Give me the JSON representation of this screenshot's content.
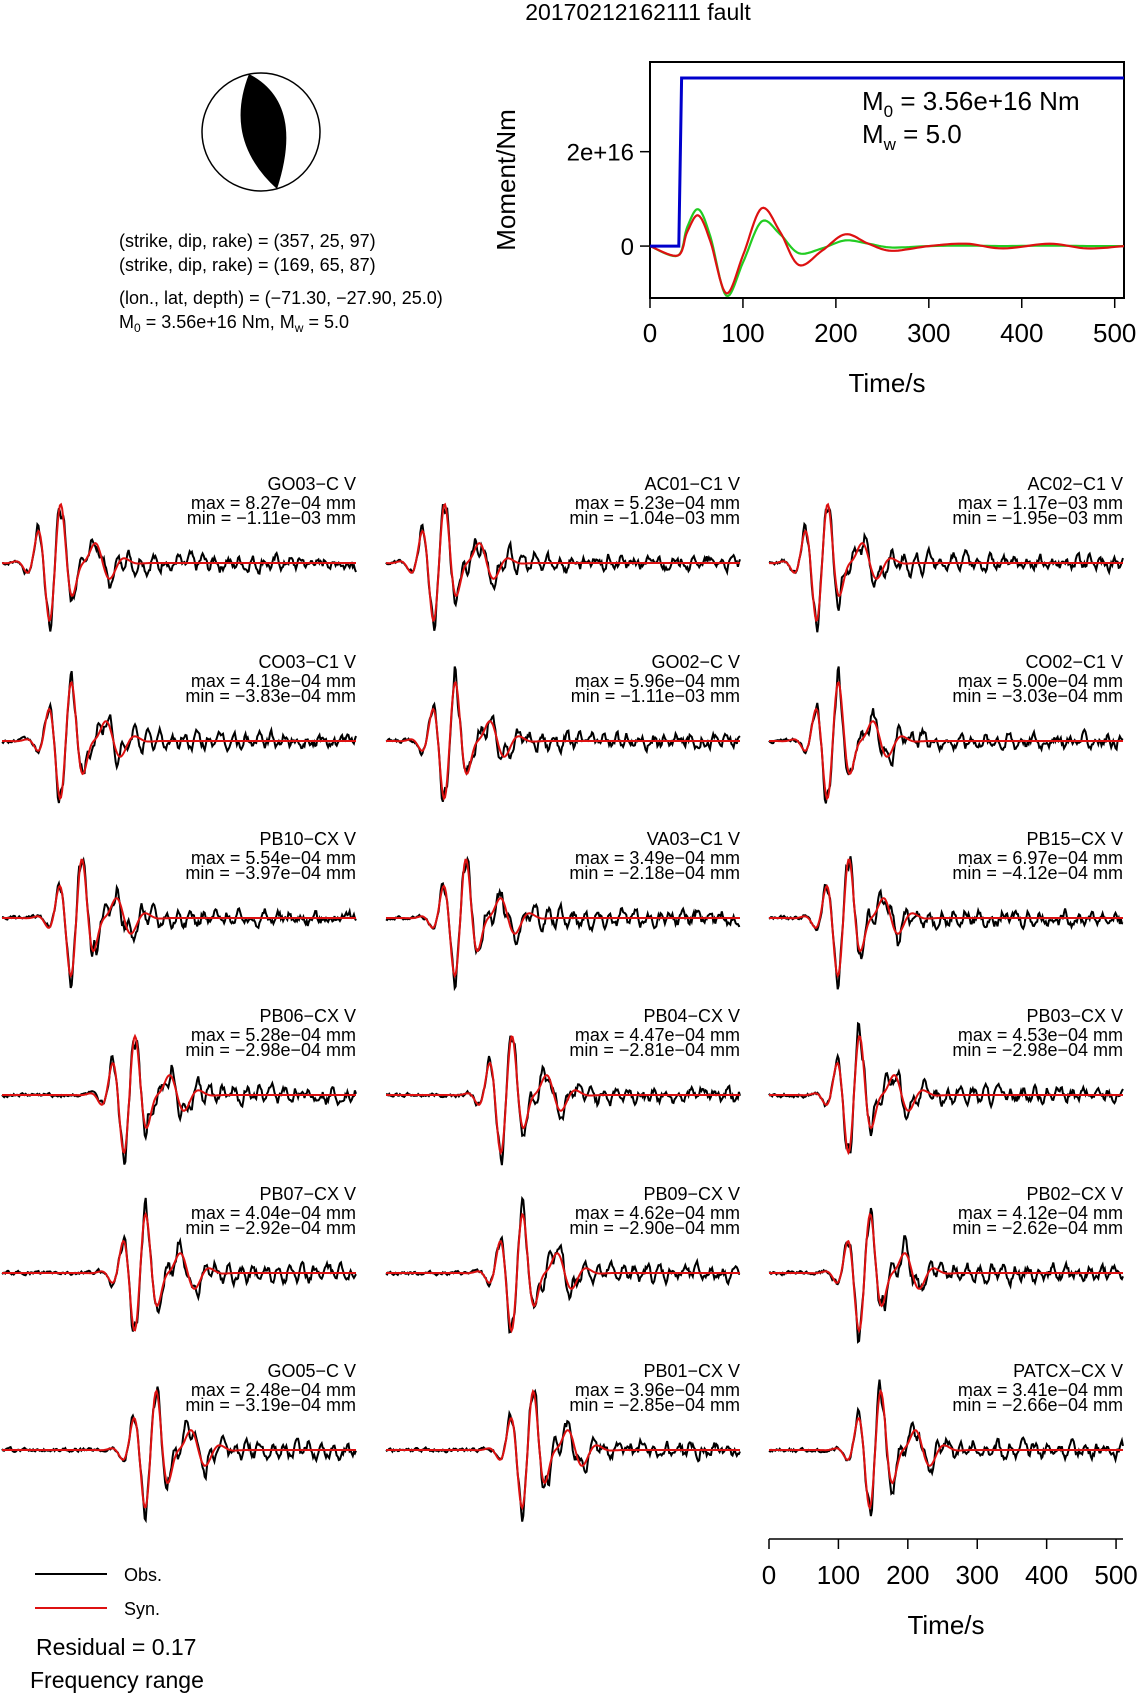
{
  "title": "20170212162111 fault",
  "focal": {
    "line1": "(strike, dip, rake) = (357, 25, 97)",
    "line2": "(strike, dip, rake) = (169, 65, 87)",
    "line3": "(lon., lat, depth) = (−71.30, −27.90, 25.0)",
    "m0_prefix": "M",
    "m0_sub": "0",
    "m0_rest": " = 3.56e+16 Nm, M",
    "mw_sub": "w",
    "mw_rest": " = 5.0"
  },
  "stf": {
    "ylabel": "Moment/Nm",
    "xlabel": "Time/s",
    "yticks": [
      {
        "v": 0,
        "label": "0"
      },
      {
        "v": 2e+16,
        "label": "2e+16"
      }
    ],
    "xticks": [
      0,
      100,
      200,
      300,
      400,
      500
    ],
    "xlim": [
      0,
      510
    ],
    "ylim": [
      -1.1e+16,
      3.9e+16
    ],
    "m0_label_prefix": "M",
    "m0_label_sub": "0",
    "m0_label_rest": " = 3.56e+16 Nm",
    "mw_label_prefix": "M",
    "mw_label_sub": "w",
    "mw_label_rest": " = 5.0",
    "colors": {
      "moment": "#0000cc",
      "red": "#dd1111",
      "green": "#22cc22"
    }
  },
  "chart_data": [
    {
      "type": "line",
      "title": "",
      "xlabel": "Time/s",
      "ylabel": "Moment/Nm",
      "xlim": [
        0,
        510
      ],
      "series": [
        {
          "color": "#0000cc",
          "x": [
            0,
            30,
            31,
            34,
            510
          ],
          "y": [
            0,
            0,
            0,
            3.56e+16,
            3.56e+16
          ]
        },
        {
          "color": "#dd1111",
          "x": [
            0,
            30,
            40,
            52,
            65,
            82,
            100,
            120,
            140,
            160,
            185,
            210,
            235,
            260,
            300,
            340,
            380,
            430,
            470,
            510
          ],
          "y": [
            0,
            -2000000000000000.0,
            3000000000000000.0,
            6500000000000000.0,
            1000000000000000.0,
            -1e+16,
            -2000000000000000.0,
            8000000000000000.0,
            3000000000000000.0,
            -4000000000000000.0,
            -1000000000000000.0,
            2500000000000000.0,
            500000000000000.0,
            -1000000000000000.0,
            0,
            500000000000000.0,
            -500000000000000.0,
            500000000000000.0,
            -500000000000000.0,
            0
          ]
        },
        {
          "color": "#22cc22",
          "x": [
            0,
            30,
            40,
            52,
            65,
            82,
            100,
            120,
            140,
            160,
            185,
            210,
            235,
            260,
            300,
            340,
            380,
            430,
            470,
            510
          ],
          "y": [
            0,
            -2000000000000000.0,
            4000000000000000.0,
            7800000000000000.0,
            2000000000000000.0,
            -1.05e+16,
            -3500000000000000.0,
            5200000000000000.0,
            2500000000000000.0,
            -1500000000000000.0,
            -500000000000000.0,
            1200000000000000.0,
            500000000000000.0,
            -300000000000000.0,
            0,
            100000000000000.0,
            0,
            100000000000000.0,
            0,
            0
          ]
        }
      ]
    },
    {
      "type": "line",
      "title": "",
      "xlabel": "Time/s",
      "xlim": [
        0,
        510
      ],
      "stations": [
        {
          "name": "GO03−C V",
          "max": "max = 8.27e−04 mm",
          "min": "min = −1.11e−03 mm"
        },
        {
          "name": "AC01−C1 V",
          "max": "max = 5.23e−04 mm",
          "min": "min = −1.04e−03 mm"
        },
        {
          "name": "AC02−C1 V",
          "max": "max = 1.17e−03 mm",
          "min": "min = −1.95e−03 mm"
        },
        {
          "name": "CO03−C1 V",
          "max": "max = 4.18e−04 mm",
          "min": "min = −3.83e−04 mm"
        },
        {
          "name": "GO02−C V",
          "max": "max = 5.96e−04 mm",
          "min": "min = −1.11e−03 mm"
        },
        {
          "name": "CO02−C1 V",
          "max": "max = 5.00e−04 mm",
          "min": "min = −3.03e−04 mm"
        },
        {
          "name": "PB10−CX V",
          "max": "max = 5.54e−04 mm",
          "min": "min = −3.97e−04 mm"
        },
        {
          "name": "VA03−C1 V",
          "max": "max = 3.49e−04 mm",
          "min": "min = −2.18e−04 mm"
        },
        {
          "name": "PB15−CX V",
          "max": "max = 6.97e−04 mm",
          "min": "min = −4.12e−04 mm"
        },
        {
          "name": "PB06−CX V",
          "max": "max = 5.28e−04 mm",
          "min": "min = −2.98e−04 mm"
        },
        {
          "name": "PB04−CX V",
          "max": "max = 4.47e−04 mm",
          "min": "min = −2.81e−04 mm"
        },
        {
          "name": "PB03−CX V",
          "max": "max = 4.53e−04 mm",
          "min": "min = −2.98e−04 mm"
        },
        {
          "name": "PB07−CX V",
          "max": "max = 4.04e−04 mm",
          "min": "min = −2.92e−04 mm"
        },
        {
          "name": "PB09−CX V",
          "max": "max = 4.62e−04 mm",
          "min": "min = −2.90e−04 mm"
        },
        {
          "name": "PB02−CX V",
          "max": "max = 4.12e−04 mm",
          "min": "min = −2.62e−04 mm"
        },
        {
          "name": "GO05−C V",
          "max": "max = 2.48e−04 mm",
          "min": "min = −3.19e−04 mm"
        },
        {
          "name": "PB01−CX V",
          "max": "max = 3.96e−04 mm",
          "min": "min = −2.85e−04 mm"
        },
        {
          "name": "PATCX−CX V",
          "max": "max = 3.41e−04 mm",
          "min": "min = −2.66e−04 mm"
        }
      ],
      "xticks": [
        0,
        100,
        200,
        300,
        400,
        500
      ],
      "colors": {
        "obs": "#000000",
        "syn": "#dd1111"
      }
    }
  ],
  "legend": {
    "obs": "Obs.",
    "syn": "Syn."
  },
  "residual": "Residual = 0.17",
  "freq": "Frequency range"
}
